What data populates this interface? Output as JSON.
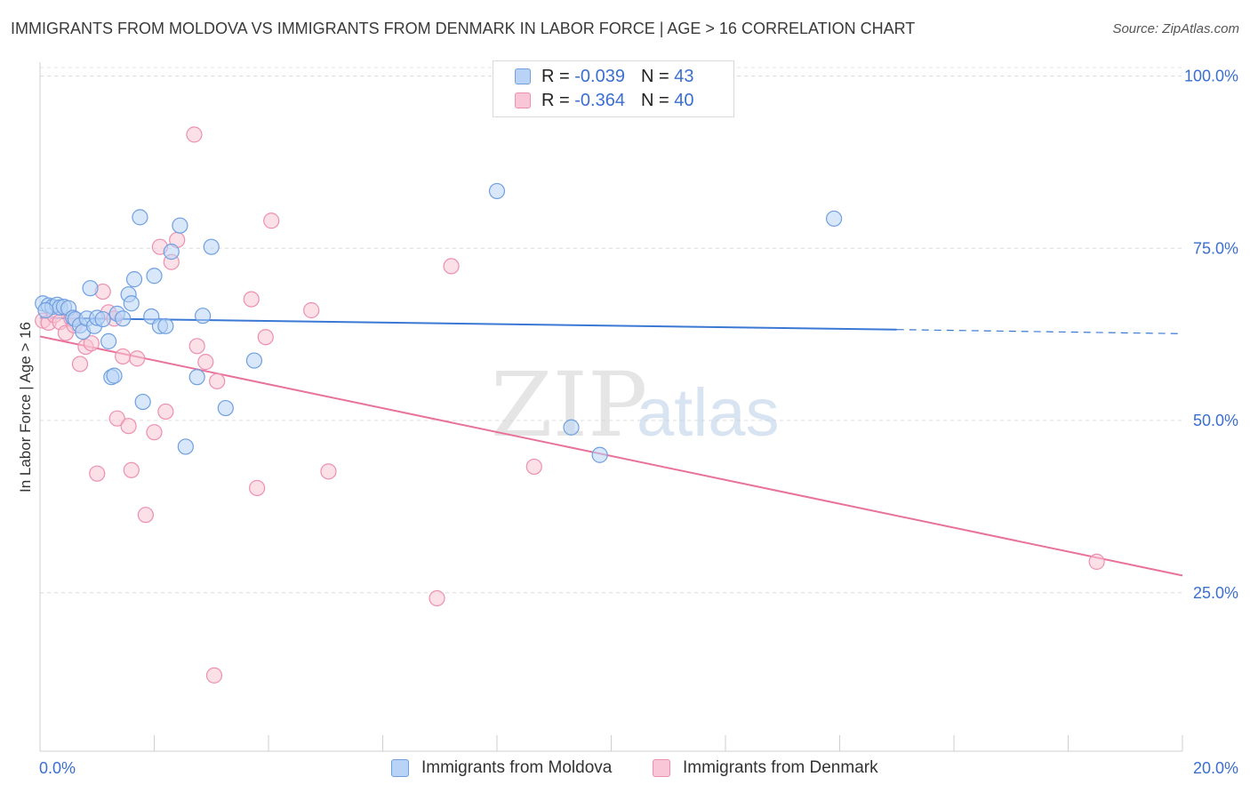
{
  "title": "IMMIGRANTS FROM MOLDOVA VS IMMIGRANTS FROM DENMARK IN LABOR FORCE | AGE > 16 CORRELATION CHART",
  "source": "Source: ZipAtlas.com",
  "legend": {
    "r_label": "R =",
    "n_label": "N =",
    "moldova": {
      "r": "-0.039",
      "n": "43"
    },
    "denmark": {
      "r": "-0.364",
      "n": "40"
    }
  },
  "watermark": {
    "zip": "ZIP",
    "atlas": "atlas"
  },
  "colors": {
    "moldova_fill": "#b8d3f6",
    "moldova_stroke": "#6f9fe0",
    "moldova_line": "#3a78d4",
    "denmark_fill": "#f8c6d6",
    "denmark_stroke": "#ee8fae",
    "denmark_line": "#e8729b",
    "axis_text": "#3a6fd0"
  },
  "chart_data": {
    "type": "scatter",
    "title": "IMMIGRANTS FROM MOLDOVA VS IMMIGRANTS FROM DENMARK IN LABOR FORCE | AGE > 16 CORRELATION CHART",
    "xlabel": "",
    "ylabel": "In Labor Force | Age > 16",
    "xlim": [
      0,
      20
    ],
    "ylim": [
      2,
      102
    ],
    "x_tick_labels": [
      "0.0%",
      "20.0%"
    ],
    "y_ticks": [
      25,
      50,
      75,
      100
    ],
    "y_tick_labels": [
      "25.0%",
      "50.0%",
      "75.0%",
      "100.0%"
    ],
    "grid": true,
    "series": [
      {
        "name": "Immigrants from Moldova",
        "color": "#6f9fe0",
        "trend": {
          "x0": 0,
          "y0": 64.9,
          "x1": 15,
          "y1": 63.2,
          "dashed_to_x": 20,
          "dashed_to_y": 62.6
        },
        "points": [
          [
            0.05,
            67.0
          ],
          [
            0.15,
            66.7
          ],
          [
            0.22,
            66.5
          ],
          [
            0.3,
            66.8
          ],
          [
            0.35,
            66.4
          ],
          [
            0.42,
            66.5
          ],
          [
            0.5,
            66.3
          ],
          [
            0.58,
            64.9
          ],
          [
            0.62,
            64.7
          ],
          [
            0.7,
            63.8
          ],
          [
            0.75,
            62.9
          ],
          [
            0.82,
            64.8
          ],
          [
            0.88,
            69.2
          ],
          [
            0.95,
            63.7
          ],
          [
            1.0,
            64.9
          ],
          [
            1.1,
            64.7
          ],
          [
            1.2,
            61.5
          ],
          [
            1.25,
            56.3
          ],
          [
            1.3,
            56.5
          ],
          [
            1.35,
            65.5
          ],
          [
            1.45,
            64.8
          ],
          [
            1.55,
            68.3
          ],
          [
            1.6,
            67.0
          ],
          [
            1.65,
            70.5
          ],
          [
            1.75,
            79.5
          ],
          [
            1.8,
            52.7
          ],
          [
            1.95,
            65.1
          ],
          [
            2.0,
            71.0
          ],
          [
            2.1,
            63.7
          ],
          [
            2.2,
            63.7
          ],
          [
            2.3,
            74.5
          ],
          [
            2.45,
            78.3
          ],
          [
            2.55,
            46.2
          ],
          [
            2.75,
            56.3
          ],
          [
            2.85,
            65.2
          ],
          [
            3.0,
            75.2
          ],
          [
            3.25,
            51.8
          ],
          [
            3.75,
            58.7
          ],
          [
            8.0,
            83.3
          ],
          [
            9.3,
            49.0
          ],
          [
            9.8,
            45.0
          ],
          [
            13.9,
            79.3
          ],
          [
            0.1,
            66.0
          ]
        ]
      },
      {
        "name": "Immigrants from Denmark",
        "color": "#ee8fae",
        "trend": {
          "x0": 0,
          "y0": 62.2,
          "x1": 20,
          "y1": 27.5
        },
        "points": [
          [
            0.05,
            64.5
          ],
          [
            0.15,
            64.2
          ],
          [
            0.25,
            65.3
          ],
          [
            0.35,
            64.3
          ],
          [
            0.45,
            62.7
          ],
          [
            0.55,
            64.8
          ],
          [
            0.6,
            63.8
          ],
          [
            0.7,
            58.2
          ],
          [
            0.8,
            60.7
          ],
          [
            0.9,
            61.2
          ],
          [
            1.0,
            42.3
          ],
          [
            1.1,
            68.7
          ],
          [
            1.2,
            65.7
          ],
          [
            1.3,
            64.8
          ],
          [
            1.35,
            50.3
          ],
          [
            1.45,
            59.3
          ],
          [
            1.55,
            49.2
          ],
          [
            1.6,
            42.8
          ],
          [
            1.7,
            59.0
          ],
          [
            1.85,
            36.3
          ],
          [
            2.0,
            48.3
          ],
          [
            2.1,
            75.2
          ],
          [
            2.2,
            51.3
          ],
          [
            2.3,
            73.0
          ],
          [
            2.4,
            76.2
          ],
          [
            2.7,
            91.5
          ],
          [
            2.75,
            60.8
          ],
          [
            2.9,
            58.5
          ],
          [
            3.05,
            13.0
          ],
          [
            3.1,
            55.7
          ],
          [
            3.7,
            67.6
          ],
          [
            3.8,
            40.2
          ],
          [
            3.95,
            62.1
          ],
          [
            4.05,
            79.0
          ],
          [
            4.75,
            66.0
          ],
          [
            5.05,
            42.6
          ],
          [
            6.95,
            24.2
          ],
          [
            7.2,
            72.4
          ],
          [
            8.65,
            43.3
          ],
          [
            18.5,
            29.5
          ]
        ]
      }
    ]
  },
  "bottom_legend": {
    "moldova": "Immigrants from Moldova",
    "denmark": "Immigrants from Denmark"
  }
}
